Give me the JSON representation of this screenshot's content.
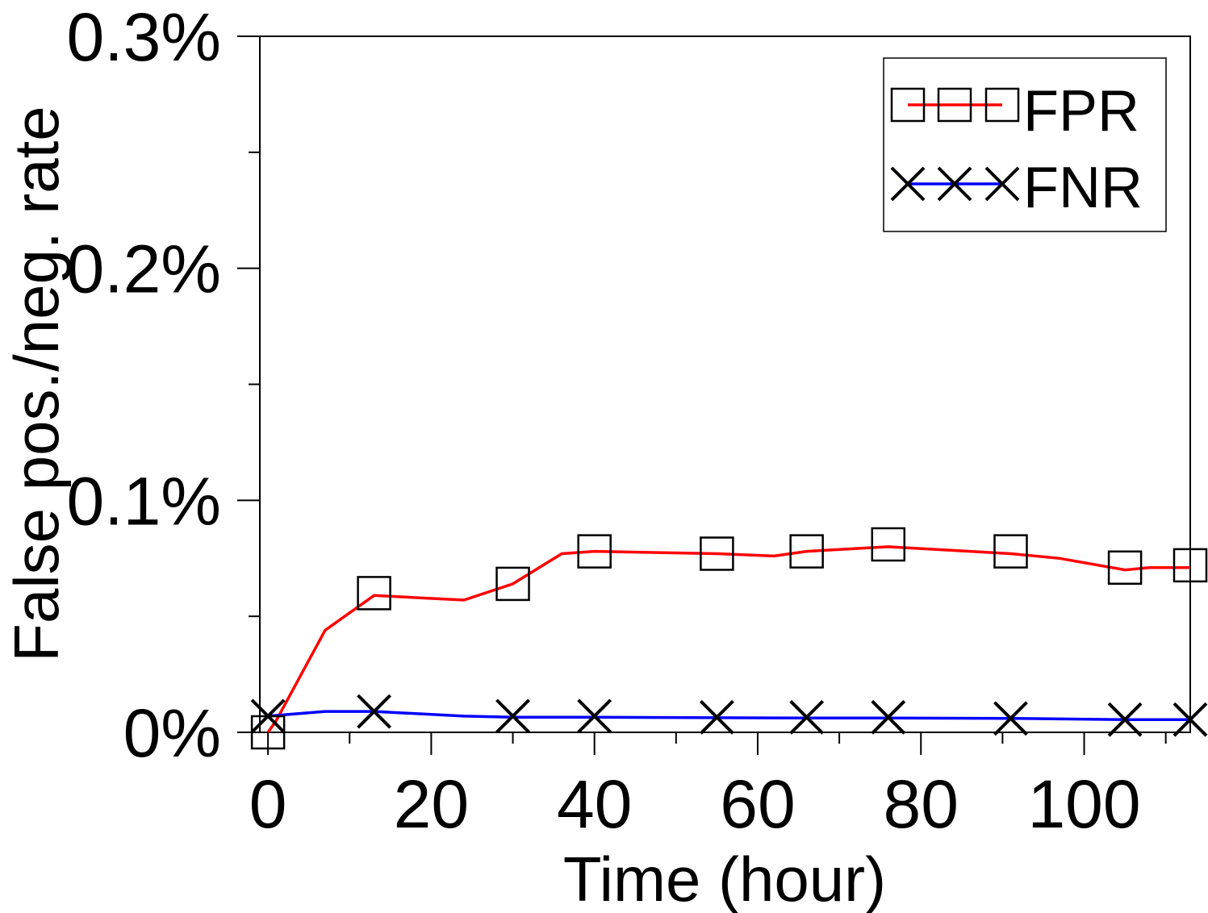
{
  "chart_data": {
    "type": "line",
    "xlabel": "Time (hour)",
    "ylabel": "False pos./neg. rate",
    "xlim": [
      -1,
      113
    ],
    "ylim": [
      0,
      0.3
    ],
    "x_ticks": [
      0,
      20,
      40,
      60,
      80,
      100
    ],
    "x_tick_labels": [
      "0",
      "20",
      "40",
      "60",
      "80",
      "100"
    ],
    "x_minor_ticks": [
      10,
      30,
      50,
      70,
      90,
      110
    ],
    "y_ticks": [
      0,
      0.1,
      0.2,
      0.3
    ],
    "y_tick_labels": [
      "0%",
      "0.1%",
      "0.2%",
      "0.3%"
    ],
    "y_minor_ticks": [
      0.05,
      0.15,
      0.25
    ],
    "grid": false,
    "legend_position": "top-right",
    "series": [
      {
        "name": "FPR",
        "color": "#ff0000",
        "marker": "square",
        "x": [
          0,
          1,
          7,
          13,
          24,
          30,
          36,
          40,
          55,
          62,
          66,
          76,
          91,
          97,
          105,
          108,
          113
        ],
        "y": [
          0,
          0.005,
          0.044,
          0.059,
          0.057,
          0.064,
          0.077,
          0.078,
          0.077,
          0.076,
          0.078,
          0.08,
          0.077,
          0.075,
          0.07,
          0.071,
          0.071
        ],
        "marker_x": [
          0,
          13,
          30,
          40,
          55,
          66,
          76,
          91,
          105,
          113
        ],
        "marker_y": [
          0,
          0.06,
          0.064,
          0.078,
          0.077,
          0.078,
          0.081,
          0.078,
          0.071,
          0.072
        ]
      },
      {
        "name": "FNR",
        "color": "#0000ff",
        "marker": "x",
        "x": [
          0,
          7,
          13,
          24,
          30,
          40,
          55,
          66,
          76,
          91,
          105,
          113
        ],
        "y": [
          0.007,
          0.009,
          0.009,
          0.007,
          0.0065,
          0.0065,
          0.0063,
          0.0062,
          0.0062,
          0.006,
          0.0055,
          0.0055
        ],
        "marker_x": [
          0,
          13,
          30,
          40,
          55,
          66,
          76,
          91,
          105,
          113
        ],
        "marker_y": [
          0.007,
          0.009,
          0.007,
          0.007,
          0.0065,
          0.0065,
          0.0065,
          0.006,
          0.0055,
          0.0055
        ]
      }
    ]
  }
}
